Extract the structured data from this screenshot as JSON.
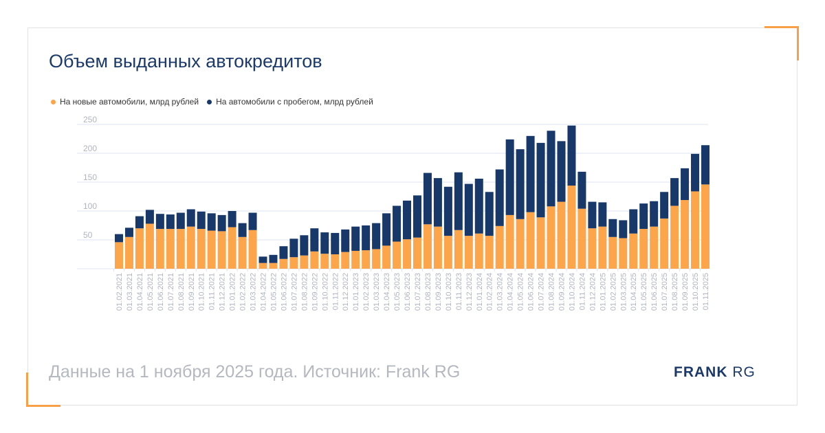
{
  "title": "Объем выданных автокредитов",
  "footer": "Данные на 1 ноября 2025 года. Источник: Frank RG",
  "logo": {
    "bold": "FRANK",
    "light": "RG"
  },
  "colors": {
    "new": "#fda54b",
    "used": "#173868",
    "grid": "#dfe3f0",
    "ticks": "#b0b4c0"
  },
  "chart_data": {
    "type": "bar",
    "stacked": true,
    "title": "Объем выданных автокредитов",
    "ylim": [
      0,
      250
    ],
    "yticks": [
      50,
      100,
      150,
      200,
      250
    ],
    "grid": true,
    "legend_position": "top-left",
    "categories": [
      "01.02.2021",
      "01.03.2021",
      "01.04.2021",
      "01.05.2021",
      "01.06.2021",
      "01.07.2021",
      "01.08.2021",
      "01.09.2021",
      "01.10.2021",
      "01.11.2021",
      "01.12.2021",
      "01.01.2022",
      "01.02.2022",
      "01.03.2022",
      "01.04.2022",
      "01.05.2022",
      "01.06.2022",
      "01.07.2022",
      "01.08.2022",
      "01.09.2022",
      "01.10.2022",
      "01.11.2022",
      "01.12.2022",
      "01.01.2023",
      "01.02.2023",
      "01.03.2023",
      "01.04.2023",
      "01.05.2023",
      "01.06.2023",
      "01.07.2023",
      "01.08.2023",
      "01.09.2023",
      "01.10.2023",
      "01.11.2023",
      "01.12.2023",
      "01.01.2024",
      "01.02.2024",
      "01.03.2024",
      "01.04.2024",
      "01.05.2024",
      "01.06.2024",
      "01.07.2024",
      "01.08.2024",
      "01.09.2024",
      "01.10.2024",
      "01.11.2024",
      "01.12.2024",
      "01.01.2025",
      "01.02.2025",
      "01.03.2025",
      "01.04.2025",
      "01.05.2025",
      "01.06.2025",
      "01.07.2025",
      "01.08.2025",
      "01.09.2025",
      "01.10.2025",
      "01.11.2025"
    ],
    "series": [
      {
        "name": "На новые автомобили, млрд рублей",
        "values": [
          46,
          55,
          70,
          78,
          69,
          69,
          69,
          73,
          69,
          66,
          65,
          72,
          55,
          67,
          10,
          10,
          17,
          20,
          23,
          30,
          26,
          25,
          29,
          31,
          32,
          34,
          40,
          47,
          51,
          54,
          77,
          73,
          57,
          67,
          57,
          61,
          57,
          74,
          93,
          86,
          98,
          89,
          108,
          116,
          144,
          104,
          70,
          73,
          55,
          53,
          61,
          69,
          73,
          87,
          109,
          119,
          134,
          146
        ]
      },
      {
        "name": "На автомобили с пробегом, млрд рублей",
        "values": [
          14,
          16,
          21,
          24,
          26,
          25,
          28,
          30,
          30,
          30,
          28,
          28,
          24,
          30,
          11,
          14,
          22,
          32,
          35,
          40,
          37,
          37,
          39,
          42,
          43,
          45,
          56,
          62,
          67,
          73,
          89,
          84,
          85,
          100,
          90,
          95,
          76,
          98,
          131,
          121,
          132,
          129,
          131,
          105,
          104,
          64,
          46,
          42,
          31,
          31,
          42,
          44,
          44,
          46,
          48,
          55,
          65,
          68
        ]
      }
    ]
  }
}
